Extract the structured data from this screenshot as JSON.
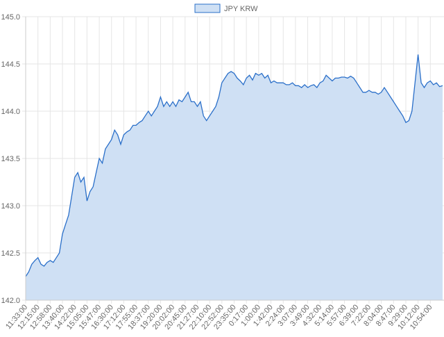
{
  "chart_data": {
    "type": "area",
    "categories": [
      "11:33:00",
      null,
      null,
      null,
      "12:15:00",
      null,
      null,
      null,
      "12:58:00",
      null,
      null,
      null,
      "13:40:00",
      null,
      null,
      null,
      "14:22:00",
      null,
      null,
      null,
      "15:05:00",
      null,
      null,
      null,
      "15:47:00",
      null,
      null,
      null,
      "16:30:00",
      null,
      null,
      null,
      "17:12:00",
      null,
      null,
      null,
      "17:55:00",
      null,
      null,
      null,
      "18:37:00",
      null,
      null,
      null,
      "19:20:00",
      null,
      null,
      null,
      "20:02:00",
      null,
      null,
      null,
      "20:45:00",
      null,
      null,
      null,
      "21:27:00",
      null,
      null,
      null,
      "22:10:00",
      null,
      null,
      null,
      "22:52:00",
      null,
      null,
      null,
      "23:35:00",
      null,
      null,
      null,
      "0:17:00",
      null,
      null,
      null,
      "1:00:00",
      null,
      null,
      null,
      "1:42:00",
      null,
      null,
      null,
      "2:24:00",
      null,
      null,
      null,
      "3:07:00",
      null,
      null,
      null,
      "3:49:00",
      null,
      null,
      null,
      "4:32:00",
      null,
      null,
      null,
      "5:14:00",
      null,
      null,
      null,
      "5:57:00",
      null,
      null,
      null,
      "6:39:00",
      null,
      null,
      null,
      "7:22:00",
      null,
      null,
      null,
      "8:04:00",
      null,
      null,
      null,
      "8:47:00",
      null,
      null,
      null,
      "9:29:00",
      null,
      null,
      null,
      "10:12:00",
      null,
      null,
      null,
      "10:54:00",
      null,
      null,
      null,
      null
    ],
    "series": [
      {
        "name": "JPY KRW",
        "color": "#2a6fc9",
        "fill": "#cfe0f4",
        "values": [
          142.25,
          142.3,
          142.38,
          142.42,
          142.45,
          142.38,
          142.36,
          142.4,
          142.42,
          142.4,
          142.45,
          142.5,
          142.7,
          142.8,
          142.9,
          143.1,
          143.3,
          143.35,
          143.25,
          143.3,
          143.05,
          143.15,
          143.2,
          143.35,
          143.5,
          143.45,
          143.6,
          143.65,
          143.7,
          143.8,
          143.75,
          143.65,
          143.75,
          143.78,
          143.8,
          143.85,
          143.85,
          143.88,
          143.9,
          143.95,
          144.0,
          143.95,
          144.0,
          144.05,
          144.15,
          144.05,
          144.1,
          144.05,
          144.1,
          144.05,
          144.12,
          144.1,
          144.15,
          144.2,
          144.1,
          144.1,
          144.05,
          144.1,
          143.95,
          143.9,
          143.95,
          144.0,
          144.05,
          144.15,
          144.3,
          144.35,
          144.4,
          144.42,
          144.4,
          144.35,
          144.32,
          144.28,
          144.35,
          144.38,
          144.33,
          144.4,
          144.38,
          144.4,
          144.35,
          144.38,
          144.3,
          144.32,
          144.3,
          144.3,
          144.3,
          144.28,
          144.28,
          144.3,
          144.27,
          144.27,
          144.25,
          144.28,
          144.25,
          144.27,
          144.28,
          144.25,
          144.3,
          144.32,
          144.38,
          144.35,
          144.32,
          144.35,
          144.35,
          144.36,
          144.36,
          144.35,
          144.37,
          144.35,
          144.3,
          144.25,
          144.2,
          144.2,
          144.22,
          144.2,
          144.2,
          144.18,
          144.2,
          144.25,
          144.2,
          144.15,
          144.1,
          144.05,
          144.0,
          143.95,
          143.88,
          143.9,
          144.0,
          144.3,
          144.6,
          144.3,
          144.25,
          144.3,
          144.32,
          144.28,
          144.3,
          144.26,
          144.27
        ]
      }
    ],
    "ylim": [
      142,
      145
    ],
    "yticks": [
      {
        "value": 142,
        "label": "142.0"
      },
      142.5,
      {
        "value": 143,
        "label": "143.0"
      },
      143.5,
      {
        "value": 144,
        "label": "144.0"
      },
      144.5,
      {
        "value": 145,
        "label": "145.0"
      }
    ],
    "grid": true,
    "legend": "top"
  }
}
